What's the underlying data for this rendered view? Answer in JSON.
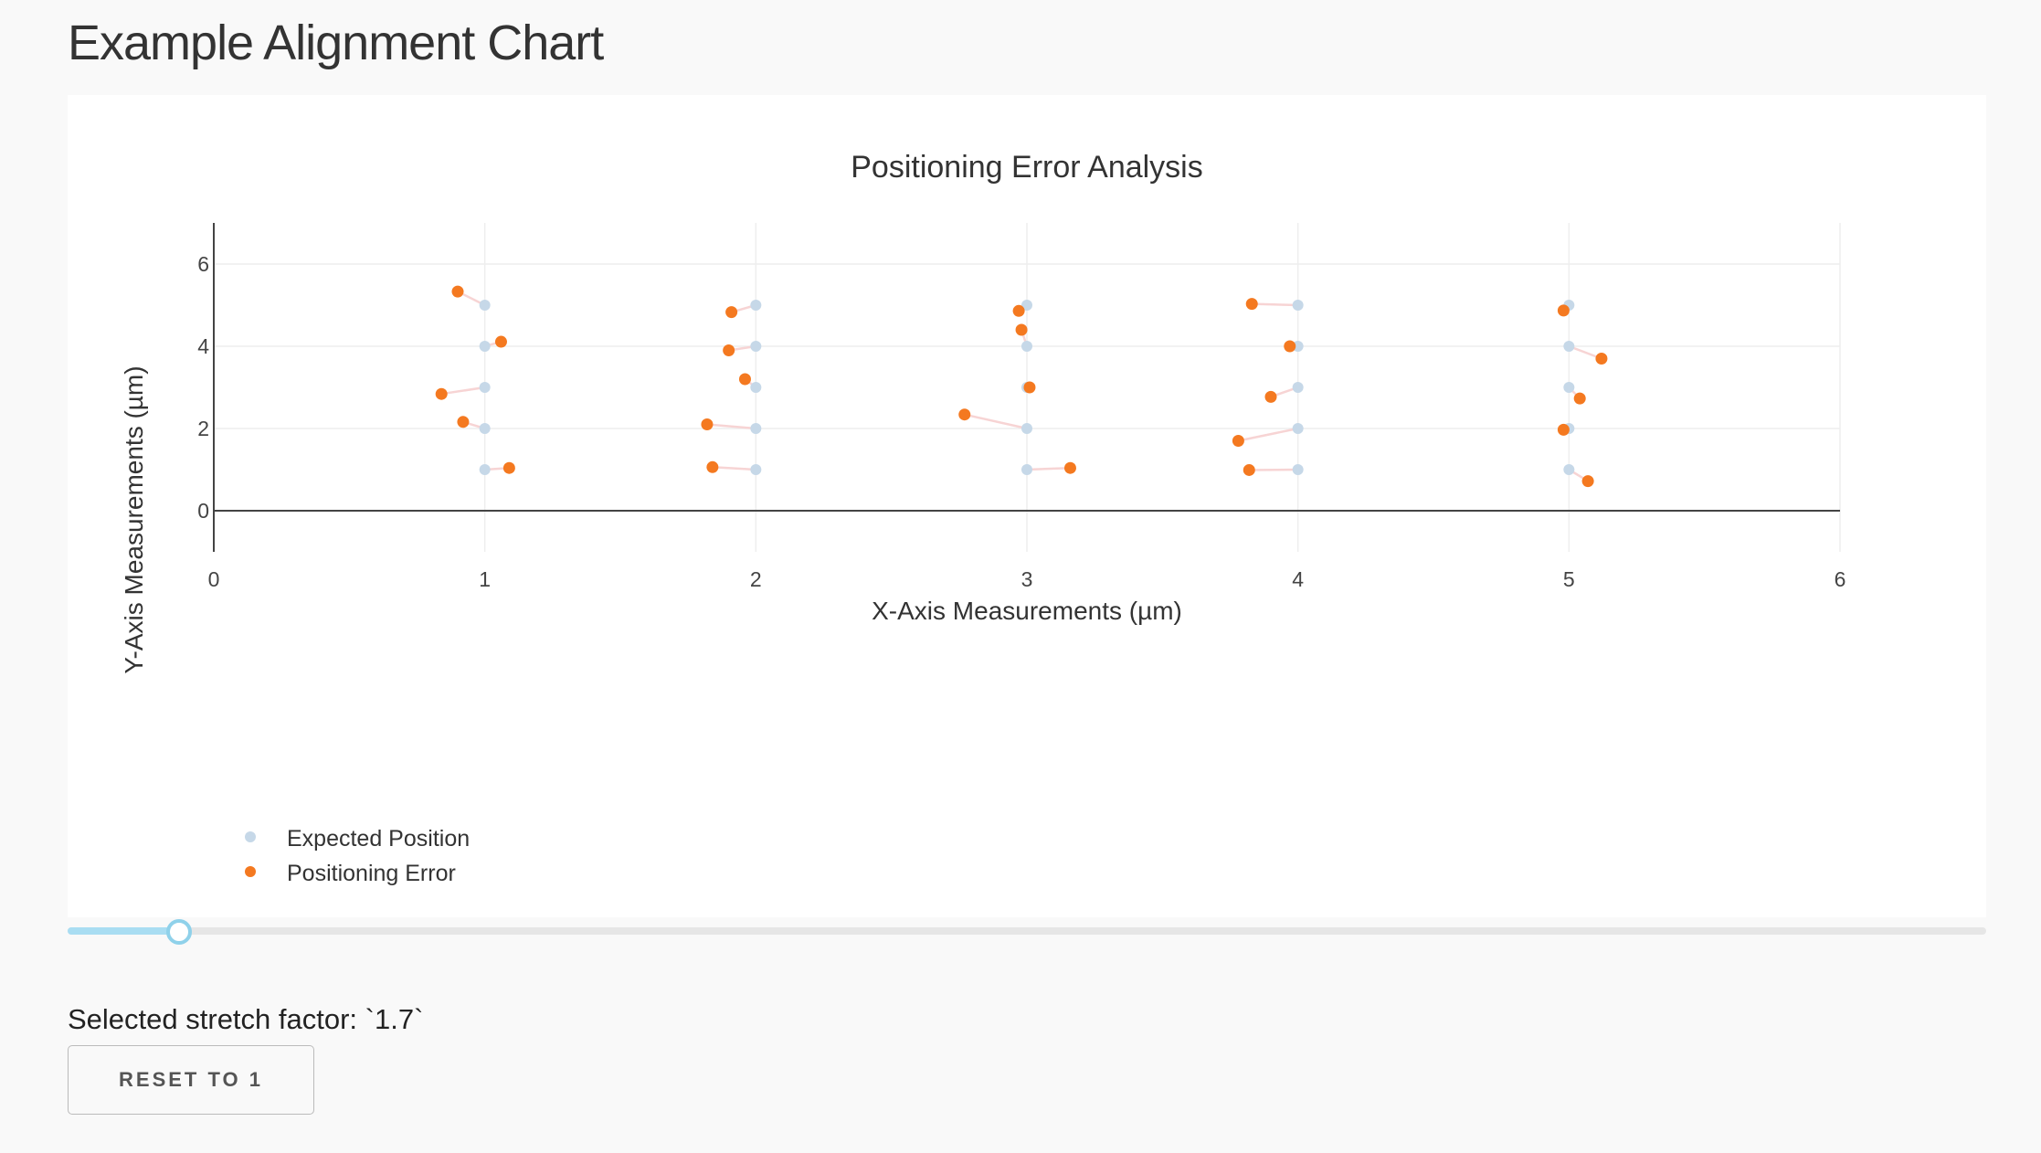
{
  "page": {
    "title": "Example Alignment Chart"
  },
  "chart_data": {
    "type": "scatter",
    "title": "Positioning Error Analysis",
    "xlabel": "X-Axis Measurements (µm)",
    "ylabel": "Y-Axis Measurements (µm)",
    "xlim": [
      0,
      6
    ],
    "ylim": [
      -1,
      7
    ],
    "xticks": [
      0,
      1,
      2,
      3,
      4,
      5,
      6
    ],
    "yticks": [
      0,
      2,
      4,
      6
    ],
    "grid": true,
    "legend_position": "bottom-left",
    "connector_color": "#f7d4d4",
    "series": [
      {
        "name": "Expected Position",
        "color": "#c6d8e8",
        "points": [
          [
            1,
            1
          ],
          [
            1,
            2
          ],
          [
            1,
            3
          ],
          [
            1,
            4
          ],
          [
            1,
            5
          ],
          [
            2,
            1
          ],
          [
            2,
            2
          ],
          [
            2,
            3
          ],
          [
            2,
            4
          ],
          [
            2,
            5
          ],
          [
            3,
            1
          ],
          [
            3,
            2
          ],
          [
            3,
            3
          ],
          [
            3,
            4
          ],
          [
            3,
            5
          ],
          [
            4,
            1
          ],
          [
            4,
            2
          ],
          [
            4,
            3
          ],
          [
            4,
            4
          ],
          [
            4,
            5
          ],
          [
            5,
            1
          ],
          [
            5,
            2
          ],
          [
            5,
            3
          ],
          [
            5,
            4
          ],
          [
            5,
            5
          ]
        ]
      },
      {
        "name": "Positioning Error",
        "color": "#f47920",
        "points": [
          [
            1.09,
            1.04
          ],
          [
            0.92,
            2.16
          ],
          [
            0.84,
            2.84
          ],
          [
            1.06,
            4.11
          ],
          [
            0.9,
            5.33
          ],
          [
            1.84,
            1.06
          ],
          [
            1.82,
            2.1
          ],
          [
            1.96,
            3.2
          ],
          [
            1.9,
            3.9
          ],
          [
            1.91,
            4.83
          ],
          [
            3.16,
            1.04
          ],
          [
            2.77,
            2.34
          ],
          [
            3.01,
            3.0
          ],
          [
            2.98,
            4.4
          ],
          [
            2.97,
            4.86
          ],
          [
            3.82,
            0.99
          ],
          [
            3.78,
            1.7
          ],
          [
            3.9,
            2.77
          ],
          [
            3.97,
            4.0
          ],
          [
            3.83,
            5.03
          ],
          [
            5.07,
            0.72
          ],
          [
            4.98,
            1.97
          ],
          [
            5.04,
            2.73
          ],
          [
            5.12,
            3.7
          ],
          [
            4.98,
            4.87
          ]
        ]
      }
    ]
  },
  "slider": {
    "value": 1.7,
    "min": 1,
    "max": 13
  },
  "status": {
    "stretch_text": "Selected stretch factor: `1.7`"
  },
  "controls": {
    "reset_label": "RESET TO 1"
  }
}
